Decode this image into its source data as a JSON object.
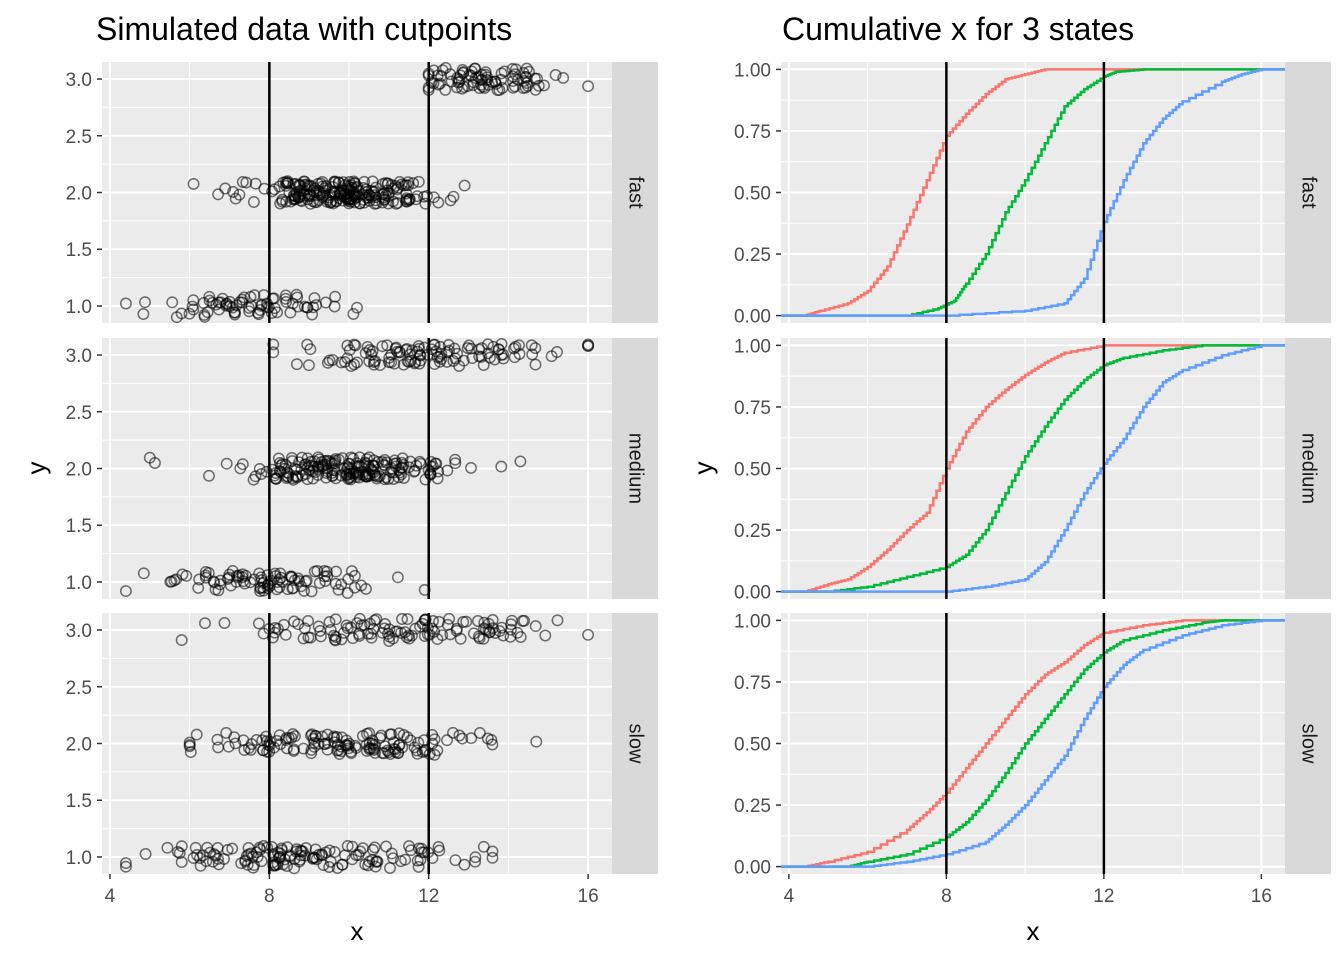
{
  "chart_data": [
    {
      "type": "scatter",
      "title": "Simulated data with cutpoints",
      "xlabel": "x",
      "ylabel": "y",
      "xlim": [
        3.8,
        16.6
      ],
      "ylim": [
        0.85,
        3.15
      ],
      "x_ticks": [
        4,
        8,
        12,
        16
      ],
      "y_ticks": [
        1.0,
        1.5,
        2.0,
        2.5,
        3.0
      ],
      "y_tick_labels": [
        "1.0",
        "1.5",
        "2.0",
        "2.5",
        "3.0"
      ],
      "cutpoints": [
        8,
        12
      ],
      "point_style": "open-circle",
      "point_color": "#000000",
      "facets": [
        {
          "label": "fast",
          "groups": [
            {
              "y": 1,
              "x_min": 4.4,
              "x_max": 10.2,
              "center": 7.5,
              "spread": 1.1,
              "count": 75
            },
            {
              "y": 2,
              "x_min": 6.1,
              "x_max": 12.9,
              "center": 10.0,
              "spread": 1.1,
              "count": 230
            },
            {
              "y": 3,
              "x_min": 12.0,
              "x_max": 16.0,
              "center": 13.4,
              "spread": 0.9,
              "count": 85
            }
          ]
        },
        {
          "label": "medium",
          "groups": [
            {
              "y": 1,
              "x_min": 4.4,
              "x_max": 11.9,
              "center": 7.8,
              "spread": 1.4,
              "count": 95
            },
            {
              "y": 2,
              "x_min": 5.0,
              "x_max": 14.3,
              "center": 10.0,
              "spread": 1.3,
              "count": 200
            },
            {
              "y": 3,
              "x_min": 8.1,
              "x_max": 16.0,
              "center": 12.0,
              "spread": 1.6,
              "count": 115
            }
          ]
        },
        {
          "label": "slow",
          "groups": [
            {
              "y": 1,
              "x_min": 4.4,
              "x_max": 13.6,
              "center": 9.0,
              "spread": 1.8,
              "count": 140
            },
            {
              "y": 2,
              "x_min": 6.0,
              "x_max": 14.7,
              "center": 10.0,
              "spread": 1.6,
              "count": 140
            },
            {
              "y": 3,
              "x_min": 5.8,
              "x_max": 16.0,
              "center": 11.0,
              "spread": 2.0,
              "count": 120
            }
          ]
        }
      ]
    },
    {
      "type": "line",
      "title": "Cumulative x for 3 states",
      "xlabel": "x",
      "ylabel": "y",
      "xlim": [
        3.8,
        16.6
      ],
      "ylim": [
        -0.03,
        1.03
      ],
      "x_ticks": [
        4,
        8,
        12,
        16
      ],
      "y_ticks": [
        0,
        0.25,
        0.5,
        0.75,
        1.0
      ],
      "y_tick_labels": [
        "0.00",
        "0.25",
        "0.50",
        "0.75",
        "1.00"
      ],
      "cutpoints": [
        8,
        12
      ],
      "series_colors": [
        "#F8766D",
        "#00BA38",
        "#619CFF"
      ],
      "facets": [
        {
          "label": "fast",
          "series": [
            {
              "color": "#F8766D",
              "points": [
                [
                  3.8,
                  0
                ],
                [
                  4.4,
                  0
                ],
                [
                  4.8,
                  0.02
                ],
                [
                  5.5,
                  0.05
                ],
                [
                  6.0,
                  0.1
                ],
                [
                  6.5,
                  0.2
                ],
                [
                  7.0,
                  0.37
                ],
                [
                  7.5,
                  0.55
                ],
                [
                  8.0,
                  0.73
                ],
                [
                  8.5,
                  0.82
                ],
                [
                  9.0,
                  0.9
                ],
                [
                  9.5,
                  0.96
                ],
                [
                  10.0,
                  0.98
                ],
                [
                  10.5,
                  1.0
                ],
                [
                  16.6,
                  1.0
                ]
              ]
            },
            {
              "color": "#00BA38",
              "points": [
                [
                  3.8,
                  0
                ],
                [
                  7.0,
                  0
                ],
                [
                  7.8,
                  0.03
                ],
                [
                  8.2,
                  0.06
                ],
                [
                  8.5,
                  0.13
                ],
                [
                  9.0,
                  0.25
                ],
                [
                  9.5,
                  0.42
                ],
                [
                  10.0,
                  0.55
                ],
                [
                  10.5,
                  0.7
                ],
                [
                  11.0,
                  0.85
                ],
                [
                  11.5,
                  0.92
                ],
                [
                  12.0,
                  0.97
                ],
                [
                  12.3,
                  0.99
                ],
                [
                  13.0,
                  1.0
                ],
                [
                  16.6,
                  1.0
                ]
              ]
            },
            {
              "color": "#619CFF",
              "points": [
                [
                  3.8,
                  0
                ],
                [
                  8.0,
                  0
                ],
                [
                  10.0,
                  0.02
                ],
                [
                  11.0,
                  0.05
                ],
                [
                  11.5,
                  0.15
                ],
                [
                  12.0,
                  0.38
                ],
                [
                  12.5,
                  0.55
                ],
                [
                  13.0,
                  0.7
                ],
                [
                  13.5,
                  0.8
                ],
                [
                  14.0,
                  0.87
                ],
                [
                  15.0,
                  0.95
                ],
                [
                  15.5,
                  0.98
                ],
                [
                  16.0,
                  1.0
                ],
                [
                  16.6,
                  1.0
                ]
              ]
            }
          ]
        },
        {
          "label": "medium",
          "series": [
            {
              "color": "#F8766D",
              "points": [
                [
                  3.8,
                  0
                ],
                [
                  4.4,
                  0
                ],
                [
                  5.0,
                  0.03
                ],
                [
                  5.5,
                  0.05
                ],
                [
                  6.0,
                  0.1
                ],
                [
                  6.5,
                  0.17
                ],
                [
                  7.0,
                  0.25
                ],
                [
                  7.5,
                  0.32
                ],
                [
                  8.0,
                  0.5
                ],
                [
                  8.5,
                  0.65
                ],
                [
                  9.0,
                  0.75
                ],
                [
                  9.5,
                  0.82
                ],
                [
                  10.0,
                  0.88
                ],
                [
                  10.5,
                  0.93
                ],
                [
                  11.0,
                  0.97
                ],
                [
                  12.0,
                  1.0
                ],
                [
                  16.6,
                  1.0
                ]
              ]
            },
            {
              "color": "#00BA38",
              "points": [
                [
                  3.8,
                  0
                ],
                [
                  5.0,
                  0
                ],
                [
                  6.0,
                  0.02
                ],
                [
                  7.0,
                  0.06
                ],
                [
                  8.0,
                  0.1
                ],
                [
                  8.5,
                  0.15
                ],
                [
                  9.0,
                  0.25
                ],
                [
                  9.5,
                  0.4
                ],
                [
                  10.0,
                  0.55
                ],
                [
                  10.5,
                  0.67
                ],
                [
                  11.0,
                  0.78
                ],
                [
                  11.5,
                  0.86
                ],
                [
                  12.0,
                  0.92
                ],
                [
                  12.5,
                  0.95
                ],
                [
                  13.5,
                  0.98
                ],
                [
                  14.5,
                  1.0
                ],
                [
                  16.6,
                  1.0
                ]
              ]
            },
            {
              "color": "#619CFF",
              "points": [
                [
                  3.8,
                  0
                ],
                [
                  8.0,
                  0
                ],
                [
                  9.0,
                  0.02
                ],
                [
                  10.0,
                  0.05
                ],
                [
                  10.5,
                  0.12
                ],
                [
                  11.0,
                  0.25
                ],
                [
                  11.5,
                  0.4
                ],
                [
                  12.0,
                  0.52
                ],
                [
                  12.5,
                  0.62
                ],
                [
                  13.0,
                  0.75
                ],
                [
                  13.5,
                  0.85
                ],
                [
                  14.0,
                  0.9
                ],
                [
                  15.0,
                  0.96
                ],
                [
                  16.0,
                  1.0
                ],
                [
                  16.6,
                  1.0
                ]
              ]
            }
          ]
        },
        {
          "label": "slow",
          "series": [
            {
              "color": "#F8766D",
              "points": [
                [
                  3.8,
                  0
                ],
                [
                  4.4,
                  0
                ],
                [
                  5.0,
                  0.02
                ],
                [
                  6.0,
                  0.06
                ],
                [
                  7.0,
                  0.15
                ],
                [
                  7.5,
                  0.22
                ],
                [
                  8.0,
                  0.3
                ],
                [
                  8.5,
                  0.4
                ],
                [
                  9.0,
                  0.5
                ],
                [
                  9.5,
                  0.6
                ],
                [
                  10.0,
                  0.7
                ],
                [
                  10.5,
                  0.78
                ],
                [
                  11.0,
                  0.83
                ],
                [
                  11.5,
                  0.9
                ],
                [
                  12.0,
                  0.95
                ],
                [
                  13.0,
                  0.98
                ],
                [
                  14.0,
                  1.0
                ],
                [
                  16.6,
                  1.0
                ]
              ]
            },
            {
              "color": "#00BA38",
              "points": [
                [
                  3.8,
                  0
                ],
                [
                  5.5,
                  0
                ],
                [
                  6.0,
                  0.02
                ],
                [
                  7.0,
                  0.05
                ],
                [
                  8.0,
                  0.12
                ],
                [
                  8.5,
                  0.18
                ],
                [
                  9.0,
                  0.27
                ],
                [
                  9.5,
                  0.38
                ],
                [
                  10.0,
                  0.5
                ],
                [
                  10.5,
                  0.6
                ],
                [
                  11.0,
                  0.7
                ],
                [
                  11.5,
                  0.8
                ],
                [
                  12.0,
                  0.87
                ],
                [
                  12.5,
                  0.92
                ],
                [
                  13.5,
                  0.96
                ],
                [
                  14.5,
                  0.99
                ],
                [
                  15.0,
                  1.0
                ],
                [
                  16.6,
                  1.0
                ]
              ]
            },
            {
              "color": "#619CFF",
              "points": [
                [
                  3.8,
                  0
                ],
                [
                  6.0,
                  0
                ],
                [
                  7.0,
                  0.02
                ],
                [
                  8.0,
                  0.05
                ],
                [
                  9.0,
                  0.1
                ],
                [
                  9.5,
                  0.17
                ],
                [
                  10.0,
                  0.25
                ],
                [
                  10.5,
                  0.35
                ],
                [
                  11.0,
                  0.45
                ],
                [
                  11.5,
                  0.6
                ],
                [
                  12.0,
                  0.73
                ],
                [
                  12.5,
                  0.82
                ],
                [
                  13.0,
                  0.88
                ],
                [
                  14.0,
                  0.94
                ],
                [
                  15.0,
                  0.98
                ],
                [
                  16.0,
                  1.0
                ],
                [
                  16.6,
                  1.0
                ]
              ]
            }
          ]
        }
      ]
    }
  ]
}
